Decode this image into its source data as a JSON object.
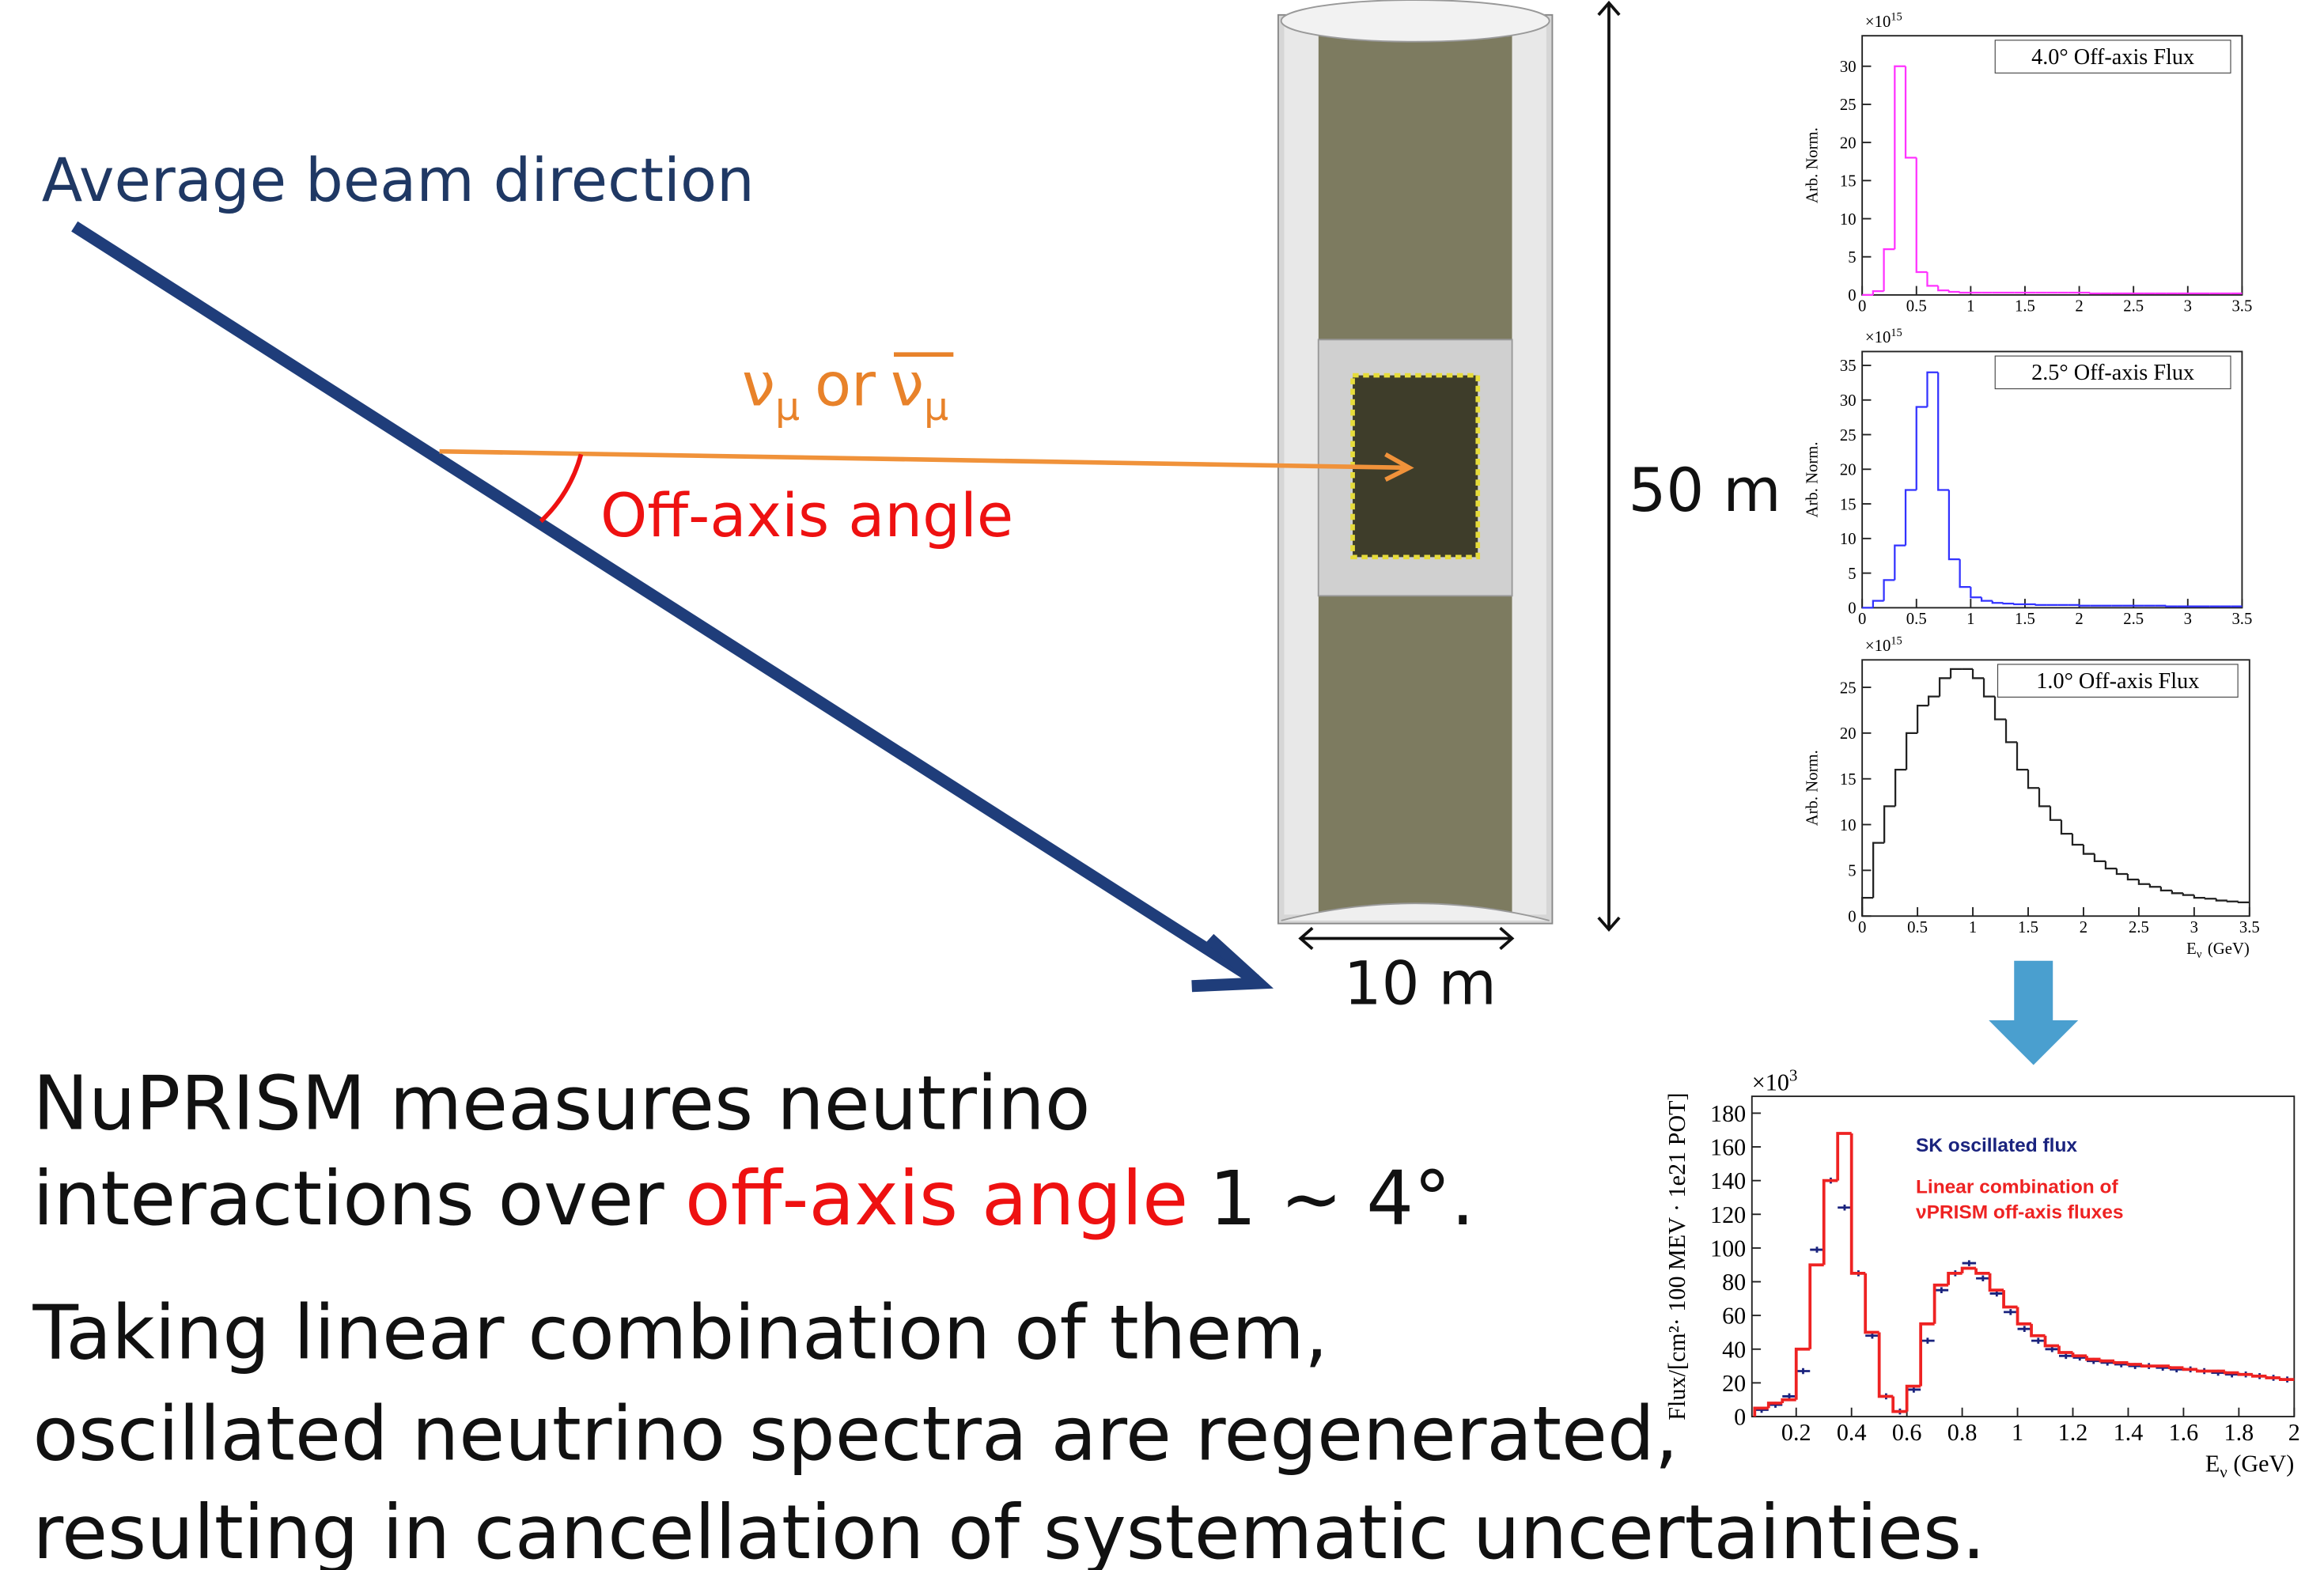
{
  "texts": {
    "beam": "Average beam direction",
    "nu": "ν",
    "mu": "μ",
    "or": "or",
    "angle": "Off-axis angle",
    "height": "50 m",
    "width": "10 m",
    "body": {
      "line1": "NuPRISM measures neutrino",
      "line2a": "interactions over",
      "line2b": "off-axis angle",
      "line2c": "1 ~ 4°.",
      "line3": "Taking linear combination of them,",
      "line4": "oscillated neutrino spectra are regenerated,",
      "line5": "resulting in cancellation of systematic uncertainties."
    }
  },
  "chart_data": [
    {
      "type": "histogram",
      "title": "4.0° Off-axis Flux",
      "ylabel": "Arb. Norm.",
      "multiplier": {
        "base": "×10",
        "power": "15"
      },
      "color": "#ff33ff",
      "bins": [
        0,
        0.1,
        0.2,
        0.3,
        0.4,
        0.5,
        0.6,
        0.7,
        0.8,
        0.9,
        1,
        1.1,
        1.2,
        1.3,
        1.4,
        1.5,
        1.6,
        1.7,
        1.8,
        1.9,
        2,
        2.1,
        2.2,
        2.3,
        2.4,
        2.5,
        2.6,
        2.7,
        2.8,
        2.9,
        3,
        3.1,
        3.2,
        3.3,
        3.4,
        3.5
      ],
      "values": [
        0,
        0.5,
        6,
        30,
        18,
        3,
        1.2,
        0.6,
        0.4,
        0.3,
        0.3,
        0.3,
        0.3,
        0.3,
        0.3,
        0.3,
        0.3,
        0.3,
        0.3,
        0.3,
        0.3,
        0.2,
        0.2,
        0.2,
        0.2,
        0.2,
        0.2,
        0.2,
        0.2,
        0.2,
        0.2,
        0.2,
        0.2,
        0.2,
        0.2
      ],
      "xlim": [
        0,
        3.5
      ],
      "xticks": [
        0,
        0.5,
        1,
        1.5,
        2,
        2.5,
        3,
        3.5
      ],
      "ylim": [
        0,
        34
      ],
      "yticks": [
        0,
        5,
        10,
        15,
        20,
        25,
        30
      ]
    },
    {
      "type": "histogram",
      "title": "2.5° Off-axis Flux",
      "ylabel": "Arb. Norm.",
      "multiplier": {
        "base": "×10",
        "power": "15"
      },
      "color": "#3333ff",
      "bins": [
        0,
        0.1,
        0.2,
        0.3,
        0.4,
        0.5,
        0.6,
        0.7,
        0.8,
        0.9,
        1,
        1.1,
        1.2,
        1.3,
        1.4,
        1.5,
        1.6,
        1.7,
        1.8,
        1.9,
        2,
        2.1,
        2.2,
        2.3,
        2.4,
        2.5,
        2.6,
        2.7,
        2.8,
        2.9,
        3,
        3.1,
        3.2,
        3.3,
        3.4,
        3.5
      ],
      "values": [
        0,
        1,
        4,
        9,
        17,
        29,
        34,
        17,
        7,
        3,
        1.5,
        1,
        0.7,
        0.6,
        0.5,
        0.5,
        0.4,
        0.4,
        0.4,
        0.4,
        0.3,
        0.3,
        0.3,
        0.3,
        0.3,
        0.3,
        0.3,
        0.3,
        0.2,
        0.2,
        0.2,
        0.2,
        0.2,
        0.2,
        0.2
      ],
      "xlim": [
        0,
        3.5
      ],
      "xticks": [
        0,
        0.5,
        1,
        1.5,
        2,
        2.5,
        3,
        3.5
      ],
      "ylim": [
        0,
        37
      ],
      "yticks": [
        0,
        5,
        10,
        15,
        20,
        25,
        30,
        35
      ]
    },
    {
      "type": "histogram",
      "title": "1.0° Off-axis Flux",
      "ylabel": "Arb. Norm.",
      "multiplier": {
        "base": "×10",
        "power": "15"
      },
      "color": "#222222",
      "xlabel": {
        "main": "E",
        "sub": "ν",
        "unit": "(GeV)"
      },
      "bins": [
        0,
        0.1,
        0.2,
        0.3,
        0.4,
        0.5,
        0.6,
        0.7,
        0.8,
        0.9,
        1,
        1.1,
        1.2,
        1.3,
        1.4,
        1.5,
        1.6,
        1.7,
        1.8,
        1.9,
        2,
        2.1,
        2.2,
        2.3,
        2.4,
        2.5,
        2.6,
        2.7,
        2.8,
        2.9,
        3,
        3.1,
        3.2,
        3.3,
        3.4,
        3.5
      ],
      "values": [
        2,
        8,
        12,
        16,
        20,
        23,
        24,
        26,
        27,
        27,
        26,
        24,
        21.5,
        19,
        16,
        14,
        12,
        10.5,
        9,
        7.8,
        6.8,
        6,
        5.2,
        4.6,
        4,
        3.5,
        3.2,
        2.8,
        2.5,
        2.3,
        2,
        1.9,
        1.7,
        1.6,
        1.5
      ],
      "xlim": [
        0,
        3.5
      ],
      "xticks": [
        0,
        0.5,
        1,
        1.5,
        2,
        2.5,
        3,
        3.5
      ],
      "ylim": [
        0,
        28
      ],
      "yticks": [
        0,
        5,
        10,
        15,
        20,
        25
      ]
    },
    {
      "type": "histogram",
      "ylabel": "Flux/[cm²· 100 MEV · 1e21 POT]",
      "multiplier": {
        "base": "×10",
        "power": "3"
      },
      "xlabel": {
        "main": "E",
        "sub": "ν",
        "unit": "(GeV)"
      },
      "bins": [
        0.05,
        0.1,
        0.15,
        0.2,
        0.25,
        0.3,
        0.35,
        0.4,
        0.45,
        0.5,
        0.55,
        0.6,
        0.65,
        0.7,
        0.75,
        0.8,
        0.85,
        0.9,
        0.95,
        1,
        1.05,
        1.1,
        1.15,
        1.2,
        1.25,
        1.3,
        1.35,
        1.4,
        1.45,
        1.5,
        1.55,
        1.6,
        1.65,
        1.7,
        1.75,
        1.8,
        1.85,
        1.9,
        1.95,
        2
      ],
      "series": [
        {
          "name": "SK oscillated flux",
          "color": "#1a237e",
          "style": "points",
          "values": [
            4,
            7,
            12,
            27,
            99,
            140,
            124,
            85,
            48,
            12,
            3,
            16,
            45,
            75,
            85,
            91,
            82,
            73,
            62,
            52,
            45,
            40,
            36,
            35,
            33,
            32,
            31,
            30,
            30,
            29,
            28,
            28,
            27,
            26,
            25,
            25,
            24,
            23,
            22
          ]
        },
        {
          "name": "Linear combination of νPRISM off-axis fluxes",
          "color": "#ee2222",
          "style": "step",
          "values": [
            5,
            8,
            10,
            40,
            90,
            140,
            168,
            85,
            50,
            12,
            3,
            18,
            55,
            78,
            85,
            88,
            85,
            75,
            65,
            55,
            48,
            42,
            38,
            36,
            34,
            33,
            32,
            31,
            30,
            30,
            29,
            28,
            27,
            27,
            26,
            25,
            24,
            23,
            22
          ]
        }
      ],
      "xlim": [
        0.04,
        2
      ],
      "xticks": [
        0.2,
        0.4,
        0.6,
        0.8,
        1,
        1.2,
        1.4,
        1.6,
        1.8,
        2
      ],
      "ylim": [
        0,
        190
      ],
      "yticks": [
        0,
        20,
        40,
        60,
        80,
        100,
        120,
        140,
        160,
        180
      ]
    }
  ]
}
